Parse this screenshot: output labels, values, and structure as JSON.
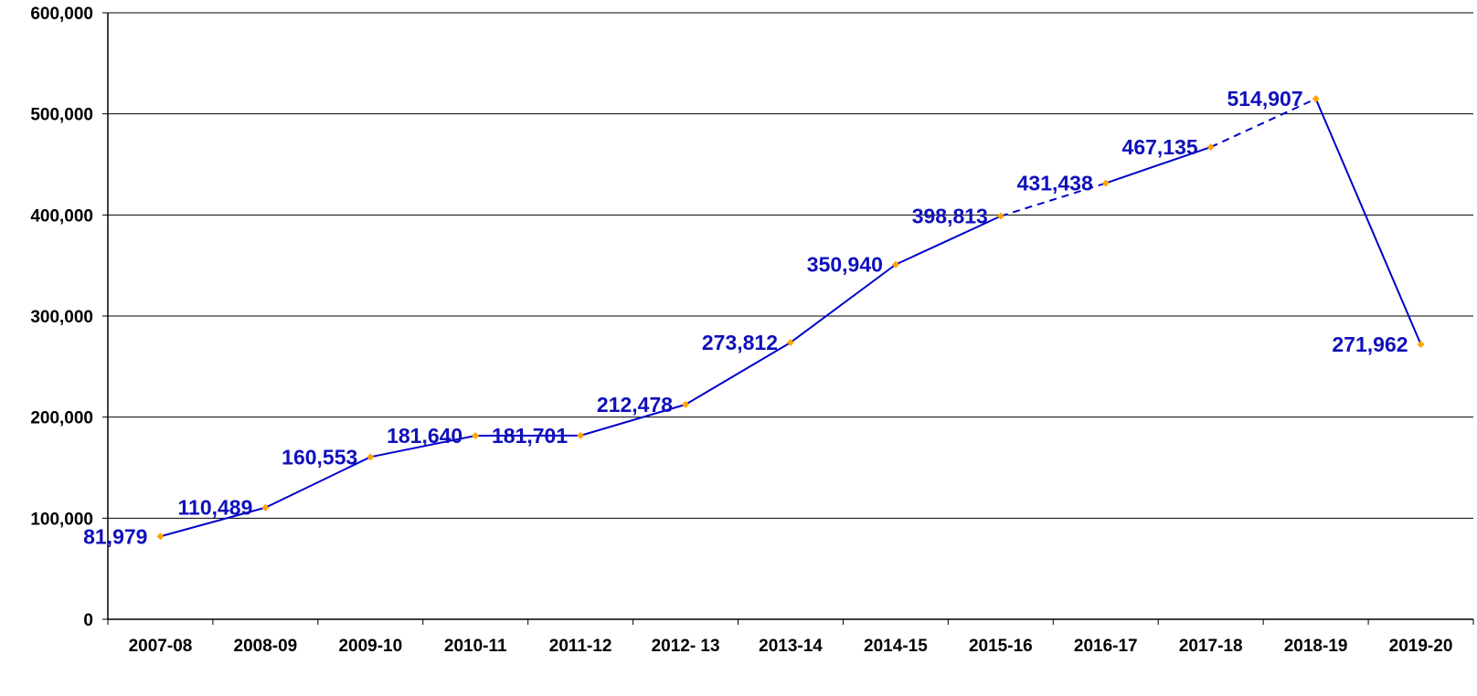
{
  "chart_data": {
    "type": "line",
    "title": "",
    "xlabel": "",
    "ylabel": "",
    "categories": [
      "2007-08",
      "2008-09",
      "2009-10",
      "2010-11",
      "2011-12",
      "2012- 13",
      "2013-14",
      "2014-15",
      "2015-16",
      "2016-17",
      "2017-18",
      "2018-19",
      "2019-20"
    ],
    "values": [
      81979,
      110489,
      160553,
      181640,
      181701,
      212478,
      273812,
      350940,
      398813,
      431438,
      467135,
      514907,
      271962
    ],
    "data_labels": [
      "81,979",
      "110,489",
      "160,553",
      "181,640",
      "181,701",
      "212,478",
      "273,812",
      "350,940",
      "398,813",
      "431,438",
      "467,135",
      "514,907",
      "271,962"
    ],
    "dashed_segments": [
      [
        8,
        9
      ],
      [
        10,
        11
      ]
    ],
    "ylim": [
      0,
      600000
    ],
    "yticks": [
      0,
      100000,
      200000,
      300000,
      400000,
      500000,
      600000
    ],
    "ytick_labels": [
      "0",
      "100,000",
      "200,000",
      "300,000",
      "400,000",
      "500,000",
      "600,000"
    ],
    "grid": "horizontal",
    "legend": "none",
    "colors": {
      "line": "#0000CC",
      "marker": "#FFA500",
      "label": "#1010BB",
      "axis": "#000000",
      "grid": "#000000"
    }
  }
}
